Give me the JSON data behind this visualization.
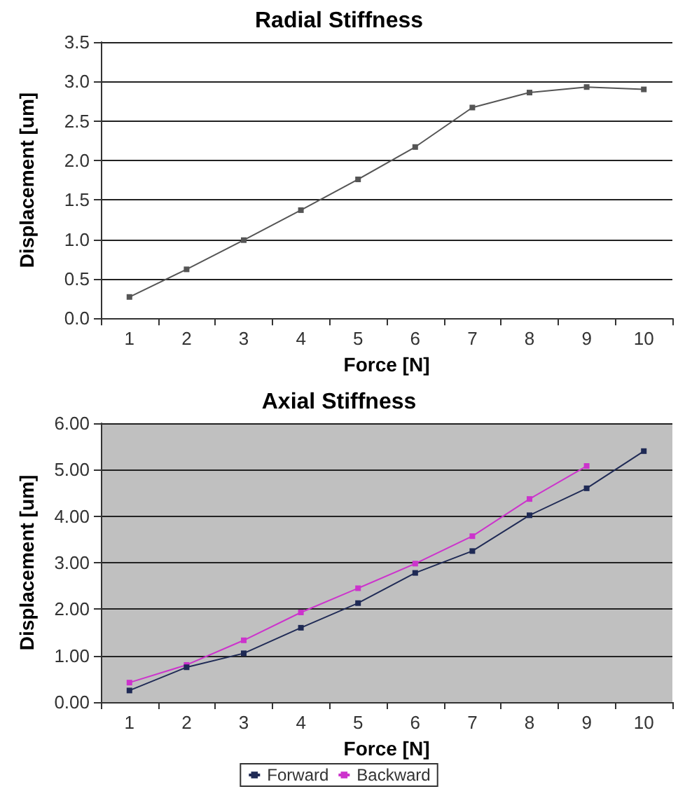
{
  "chart_data": [
    {
      "type": "line",
      "title": "Radial Stiffness",
      "xlabel": "Force [N]",
      "ylabel": "Displacement [um]",
      "categories": [
        "1",
        "2",
        "3",
        "4",
        "5",
        "6",
        "7",
        "8",
        "9",
        "10"
      ],
      "series": [
        {
          "color": "#555555",
          "values": [
            0.27,
            0.62,
            0.99,
            1.37,
            1.76,
            2.17,
            2.67,
            2.86,
            2.93,
            2.9
          ]
        }
      ],
      "ylim": [
        0,
        3.5
      ],
      "yticks": [
        {
          "value": 0,
          "label": "0.0"
        },
        {
          "value": 0.5,
          "label": "0.5"
        },
        {
          "value": 1,
          "label": "1.0"
        },
        {
          "value": 1.5,
          "label": "1.5"
        },
        {
          "value": 2,
          "label": "2.0"
        },
        {
          "value": 2.5,
          "label": "2.5"
        },
        {
          "value": 3,
          "label": "3.0"
        },
        {
          "value": 3.5,
          "label": "3.5"
        }
      ],
      "grid": "y",
      "legend": false,
      "marker": "square",
      "line_style": "solid"
    },
    {
      "type": "line",
      "title": "Axial Stiffness",
      "xlabel": "Force [N]",
      "ylabel": "Displacement [um]",
      "categories": [
        "1",
        "2",
        "3",
        "4",
        "5",
        "6",
        "7",
        "8",
        "9",
        "10"
      ],
      "series": [
        {
          "name": "Forward",
          "color": "#1f2a55",
          "values": [
            0.25,
            0.75,
            1.05,
            1.6,
            2.13,
            2.78,
            3.25,
            4.02,
            4.6,
            5.4
          ]
        },
        {
          "name": "Backward",
          "color": "#cc33cc",
          "values": [
            0.42,
            0.8,
            1.33,
            1.93,
            2.45,
            2.98,
            3.57,
            4.37,
            5.08,
            null
          ]
        }
      ],
      "ylim": [
        0,
        6
      ],
      "yticks": [
        {
          "value": 0,
          "label": "0.00"
        },
        {
          "value": 1,
          "label": "1.00"
        },
        {
          "value": 2,
          "label": "2.00"
        },
        {
          "value": 3,
          "label": "3.00"
        },
        {
          "value": 4,
          "label": "4.00"
        },
        {
          "value": 5,
          "label": "5.00"
        },
        {
          "value": 6,
          "label": "6.00"
        }
      ],
      "grid": "y",
      "legend": "bottom",
      "marker": "square",
      "line_style": "solid"
    }
  ]
}
